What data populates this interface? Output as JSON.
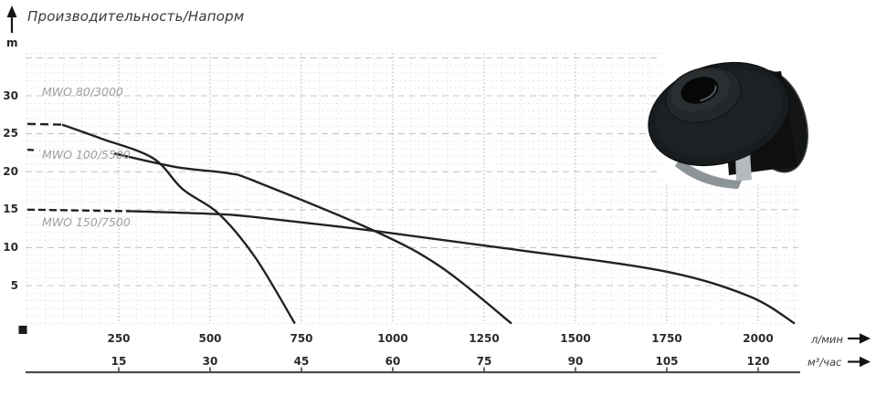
{
  "title": "Производительность/Напорм",
  "colors": {
    "curve": "#222222",
    "grid_minor": "#e0e0e0",
    "grid_major_h": "#c6c6c6",
    "grid_major_v": "#c2c2c2",
    "axis": "#4a4a4a",
    "text": "#2b2b2b",
    "curve_label": "#9e9e9e"
  },
  "chart_data": {
    "type": "line",
    "title": "Производительность/Напорм",
    "ylabel": "m",
    "xlabel_primary": "л/мин",
    "xlabel_secondary": "м³/час",
    "ylim": [
      0,
      35.6
    ],
    "xlim": [
      0,
      2110
    ],
    "grid": {
      "x_minor_step": 50,
      "x_major_step": 250,
      "y_minor_step": 1,
      "y_major_step": 5
    },
    "legend_position": "on-curve-left",
    "y_ticks": [
      30,
      25,
      20,
      15,
      10,
      5
    ],
    "x_ticks_lmin": [
      250,
      500,
      750,
      1000,
      1250,
      1500,
      1750,
      2000
    ],
    "x_ticks_m3h": [
      15,
      30,
      45,
      60,
      75,
      90,
      105,
      120
    ],
    "series": [
      {
        "name": "MWO 80/3000",
        "dash_lead": [
          [
            0,
            26.3
          ],
          [
            95,
            26.2
          ]
        ],
        "points": [
          [
            95,
            26.2
          ],
          [
            200,
            24.4
          ],
          [
            343,
            21.8
          ],
          [
            425,
            17.7
          ],
          [
            525,
            14.4
          ],
          [
            625,
            8.6
          ],
          [
            732,
            0
          ]
        ]
      },
      {
        "name": "MWO 100/5500",
        "dash_lead": [
          [
            0,
            22.9
          ],
          [
            33,
            22.8
          ]
        ],
        "points": [
          [
            238,
            22.4
          ],
          [
            408,
            20.6
          ],
          [
            550,
            19.8
          ],
          [
            625,
            18.7
          ],
          [
            950,
            12.2
          ],
          [
            1133,
            7.4
          ],
          [
            1325,
            0
          ]
        ]
      },
      {
        "name": "MWO 150/7500",
        "dash_lead": [
          [
            0,
            15.0
          ],
          [
            283,
            14.8
          ]
        ],
        "points": [
          [
            283,
            14.8
          ],
          [
            525,
            14.4
          ],
          [
            625,
            14.0
          ],
          [
            950,
            12.2
          ],
          [
            1325,
            9.8
          ],
          [
            1742,
            6.9
          ],
          [
            1975,
            3.6
          ],
          [
            2100,
            0
          ]
        ]
      }
    ]
  }
}
